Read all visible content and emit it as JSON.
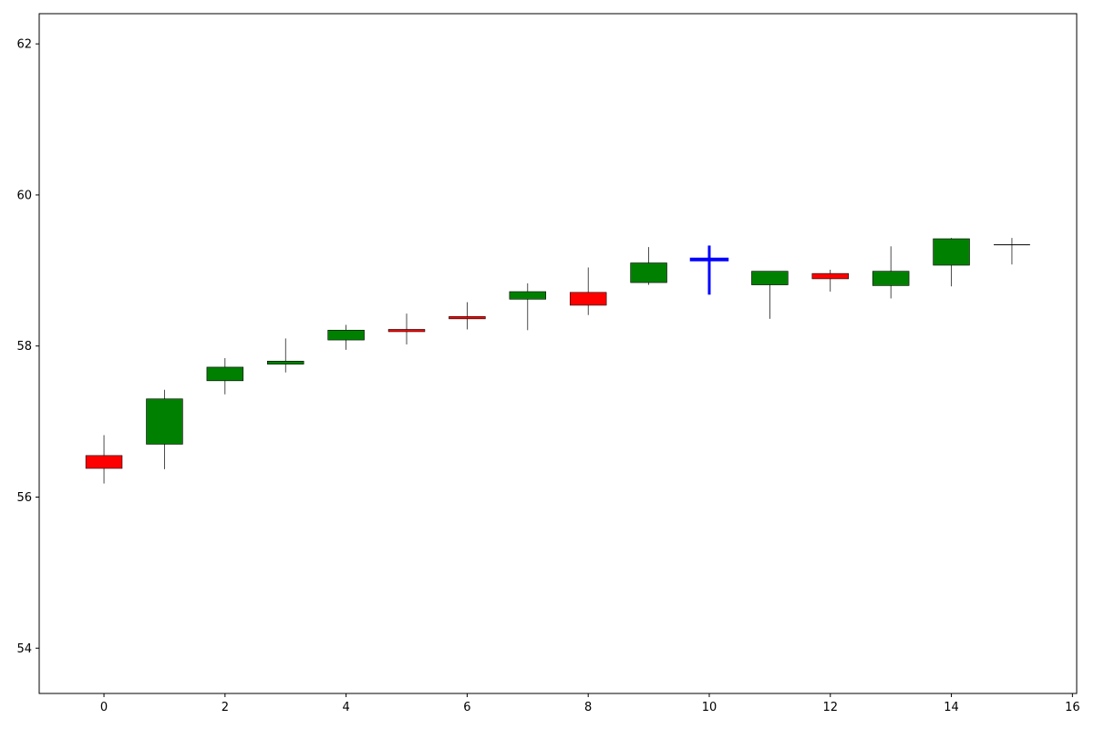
{
  "chart_data": {
    "type": "candlestick",
    "title": "",
    "xlabel": "",
    "ylabel": "",
    "xlim": [
      -1.07,
      16.07
    ],
    "ylim": [
      53.4,
      62.4
    ],
    "xticks": [
      0,
      2,
      4,
      6,
      8,
      10,
      12,
      14,
      16
    ],
    "yticks": [
      54,
      56,
      58,
      60,
      62
    ],
    "grid": false,
    "colors": {
      "up": "#008000",
      "down": "#ff0000",
      "highlight": "#0000ff",
      "neutral": "#000000"
    },
    "candles": [
      {
        "x": 0,
        "open": 56.55,
        "high": 56.82,
        "low": 56.18,
        "close": 56.38
      },
      {
        "x": 1,
        "open": 56.7,
        "high": 57.42,
        "low": 56.37,
        "close": 57.3
      },
      {
        "x": 2,
        "open": 57.54,
        "high": 57.84,
        "low": 57.36,
        "close": 57.72
      },
      {
        "x": 3,
        "open": 57.76,
        "high": 58.1,
        "low": 57.65,
        "close": 57.8
      },
      {
        "x": 4,
        "open": 58.08,
        "high": 58.28,
        "low": 57.95,
        "close": 58.21
      },
      {
        "x": 5,
        "open": 58.22,
        "high": 58.43,
        "low": 58.02,
        "close": 58.19
      },
      {
        "x": 6,
        "open": 58.39,
        "high": 58.58,
        "low": 58.22,
        "close": 58.36
      },
      {
        "x": 7,
        "open": 58.62,
        "high": 58.83,
        "low": 58.21,
        "close": 58.72
      },
      {
        "x": 8,
        "open": 58.71,
        "high": 59.04,
        "low": 58.41,
        "close": 58.54
      },
      {
        "x": 9,
        "open": 58.84,
        "high": 59.31,
        "low": 58.81,
        "close": 59.1
      },
      {
        "x": 10,
        "open": 59.15,
        "high": 59.33,
        "low": 58.68,
        "close": 59.14,
        "highlight": true
      },
      {
        "x": 11,
        "open": 58.81,
        "high": 58.99,
        "low": 58.36,
        "close": 58.99
      },
      {
        "x": 12,
        "open": 58.96,
        "high": 59.01,
        "low": 58.72,
        "close": 58.89
      },
      {
        "x": 13,
        "open": 58.8,
        "high": 59.32,
        "low": 58.63,
        "close": 58.99
      },
      {
        "x": 14,
        "open": 59.07,
        "high": 59.43,
        "low": 58.79,
        "close": 59.42
      },
      {
        "x": 15,
        "open": 59.34,
        "high": 59.43,
        "low": 59.08,
        "close": 59.34
      }
    ]
  }
}
